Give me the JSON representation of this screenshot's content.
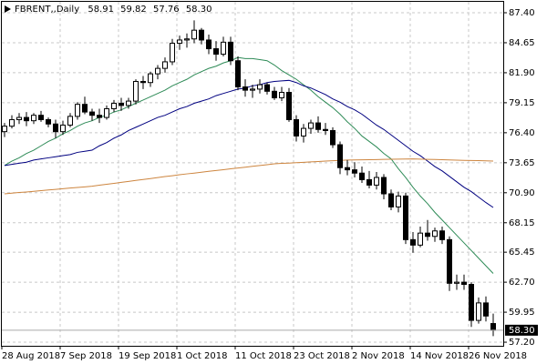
{
  "chart_data": {
    "type": "candlestick",
    "title": "FBRENT,,Daily",
    "header_values": [
      58.91,
      59.82,
      57.76,
      {
        "value": 58.3,
        "label": "58.30"
      }
    ],
    "categories": [
      "28 Aug 2018",
      null,
      null,
      null,
      null,
      null,
      null,
      null,
      "7 Sep 2018",
      null,
      null,
      null,
      null,
      null,
      null,
      null,
      "19 Sep 2018",
      null,
      null,
      null,
      null,
      null,
      null,
      null,
      "1 Oct 2018",
      null,
      null,
      null,
      null,
      null,
      null,
      null,
      "11 Oct 2018",
      null,
      null,
      null,
      null,
      null,
      null,
      null,
      "23 Oct 2018",
      null,
      null,
      null,
      null,
      null,
      null,
      null,
      "2 Nov 2018",
      null,
      null,
      null,
      null,
      null,
      null,
      null,
      "14 Nov 2018",
      null,
      null,
      null,
      null,
      null,
      null,
      null,
      "26 Nov 2018",
      null,
      null,
      null
    ],
    "open": [
      76.5,
      77.0,
      77.6,
      77.8,
      77.5,
      78.0,
      77.6,
      77.2,
      76.5,
      77.1,
      77.9,
      79.0,
      78.3,
      78.0,
      77.8,
      78.6,
      79.1,
      78.9,
      79.3,
      81.1,
      81.0,
      81.8,
      82.3,
      82.9,
      84.6,
      84.9,
      85.0,
      85.8,
      84.9,
      84.1,
      83.6,
      84.7,
      83.0,
      80.6,
      80.3,
      80.4,
      80.8,
      80.2,
      79.6,
      80.1,
      77.6,
      76.1,
      76.8,
      77.3,
      76.7,
      76.6,
      75.3,
      73.2,
      73.0,
      72.7,
      72.1,
      71.6,
      72.3,
      70.8,
      69.6,
      70.6,
      66.6,
      66.1,
      67.2,
      66.9,
      67.4,
      66.6,
      62.6,
      62.7,
      62.5,
      59.2,
      60.8,
      58.91
    ],
    "high": [
      77.3,
      78.0,
      78.2,
      78.3,
      78.2,
      78.4,
      77.8,
      77.6,
      77.5,
      78.2,
      79.2,
      79.7,
      78.6,
      78.6,
      78.9,
      79.4,
      79.6,
      79.6,
      81.3,
      81.6,
      82.0,
      82.6,
      83.3,
      85.0,
      85.3,
      85.5,
      86.7,
      86.0,
      85.4,
      84.8,
      85.2,
      85.2,
      83.4,
      81.3,
      80.8,
      81.3,
      81.0,
      80.6,
      80.6,
      80.5,
      78.0,
      77.2,
      77.6,
      77.9,
      77.3,
      76.9,
      75.6,
      73.9,
      73.7,
      73.3,
      72.9,
      72.8,
      72.6,
      71.2,
      71.0,
      70.9,
      67.3,
      67.8,
      68.4,
      67.7,
      67.8,
      66.9,
      63.4,
      63.4,
      62.7,
      61.3,
      61.4,
      59.82
    ],
    "low": [
      76.0,
      76.8,
      77.2,
      77.0,
      77.2,
      77.4,
      76.9,
      75.9,
      76.2,
      76.9,
      77.6,
      78.1,
      77.5,
      77.3,
      77.6,
      78.3,
      78.4,
      78.6,
      79.0,
      80.4,
      80.6,
      81.3,
      81.9,
      82.6,
      84.0,
      84.2,
      84.6,
      84.5,
      83.6,
      83.0,
      83.4,
      82.6,
      80.3,
      79.7,
      79.6,
      80.0,
      79.9,
      79.4,
      79.3,
      77.4,
      75.6,
      75.5,
      76.3,
      76.4,
      76.2,
      75.0,
      72.6,
      72.5,
      72.3,
      71.8,
      71.3,
      71.2,
      70.3,
      69.3,
      69.1,
      66.2,
      65.4,
      65.9,
      66.5,
      66.4,
      66.2,
      61.9,
      62.0,
      62.0,
      58.6,
      58.9,
      59.1,
      57.76
    ],
    "close": [
      77.0,
      77.6,
      77.8,
      77.5,
      78.0,
      77.6,
      77.2,
      76.5,
      77.1,
      77.9,
      79.0,
      78.3,
      78.0,
      77.8,
      78.6,
      79.1,
      78.9,
      79.3,
      81.1,
      81.0,
      81.8,
      82.3,
      82.9,
      84.6,
      84.9,
      85.0,
      85.8,
      84.9,
      84.1,
      83.6,
      84.7,
      83.0,
      80.6,
      80.3,
      80.4,
      80.8,
      80.2,
      79.6,
      80.1,
      77.6,
      76.1,
      76.8,
      77.3,
      76.7,
      76.6,
      75.3,
      73.2,
      73.0,
      72.7,
      72.1,
      71.6,
      72.3,
      70.8,
      69.6,
      70.6,
      66.6,
      66.1,
      67.2,
      66.9,
      67.4,
      66.6,
      62.6,
      62.7,
      62.5,
      59.2,
      60.8,
      59.6,
      58.3
    ],
    "series": [
      {
        "color": "#2e8b57",
        "values": [
          73.4,
          73.8,
          74.1,
          74.5,
          74.8,
          75.2,
          75.6,
          75.9,
          76.3,
          76.6,
          77.0,
          77.3,
          77.5,
          77.8,
          78.0,
          78.3,
          78.5,
          78.8,
          79.1,
          79.4,
          79.7,
          80.0,
          80.3,
          80.7,
          81.0,
          81.3,
          81.7,
          82.0,
          82.3,
          82.5,
          82.8,
          83.0,
          83.3,
          83.2,
          83.2,
          83.1,
          83.0,
          82.6,
          82.1,
          81.7,
          81.3,
          80.8,
          80.3,
          79.7,
          79.2,
          78.7,
          78.1,
          77.4,
          76.8,
          76.1,
          75.6,
          75.1,
          74.5,
          74.0,
          73.1,
          72.3,
          71.4,
          70.6,
          69.9,
          69.1,
          68.4,
          67.7,
          67.0,
          66.3,
          65.6,
          64.9,
          64.2,
          63.5
        ]
      },
      {
        "color": "#000080",
        "values": [
          73.4,
          73.5,
          73.6,
          73.7,
          73.9,
          74.0,
          74.1,
          74.2,
          74.3,
          74.4,
          74.6,
          74.7,
          74.8,
          75.2,
          75.5,
          75.9,
          76.2,
          76.6,
          76.9,
          77.2,
          77.5,
          77.8,
          78.0,
          78.3,
          78.6,
          78.8,
          79.1,
          79.3,
          79.5,
          79.8,
          80.0,
          80.2,
          80.4,
          80.5,
          80.7,
          80.8,
          81.0,
          81.1,
          81.15,
          81.2,
          81.0,
          80.7,
          80.5,
          80.2,
          79.9,
          79.5,
          79.2,
          78.8,
          78.5,
          78.1,
          77.6,
          77.1,
          76.7,
          76.2,
          75.7,
          75.2,
          74.7,
          74.3,
          73.8,
          73.3,
          72.9,
          72.4,
          71.9,
          71.4,
          71.0,
          70.5,
          70.0,
          69.55
        ]
      },
      {
        "color": "#cd853f",
        "values": [
          70.8,
          70.86,
          70.92,
          70.97,
          71.03,
          71.09,
          71.15,
          71.21,
          71.27,
          71.33,
          71.38,
          71.44,
          71.5,
          71.59,
          71.68,
          71.76,
          71.85,
          71.94,
          72.03,
          72.11,
          72.2,
          72.29,
          72.38,
          72.46,
          72.55,
          72.63,
          72.7,
          72.78,
          72.86,
          72.94,
          73.01,
          73.09,
          73.17,
          73.24,
          73.32,
          73.4,
          73.47,
          73.55,
          73.59,
          73.62,
          73.66,
          73.69,
          73.73,
          73.76,
          73.8,
          73.83,
          73.87,
          73.9,
          73.91,
          73.92,
          73.93,
          73.94,
          73.96,
          73.97,
          73.98,
          73.99,
          74.0,
          73.98,
          73.96,
          73.95,
          73.93,
          73.91,
          73.89,
          73.87,
          73.85,
          73.84,
          73.82,
          73.8
        ]
      }
    ],
    "ylim": [
      56.87,
      88.4
    ],
    "yticks": [
      {
        "value": 57.2,
        "label": "57.20"
      },
      59.95,
      {
        "value": 62.7,
        "label": "62.70"
      },
      65.45,
      68.15,
      {
        "value": 70.9,
        "label": "70.90"
      },
      73.65,
      {
        "value": 76.4,
        "label": "76.40"
      },
      79.15,
      {
        "value": 81.9,
        "label": "81.90"
      },
      84.65,
      {
        "value": 87.4,
        "label": "87.40"
      }
    ],
    "last_price": {
      "value": 58.3,
      "label": "58.30"
    },
    "grid": true,
    "up_color": "#ffffff",
    "down_color": "#000000"
  }
}
